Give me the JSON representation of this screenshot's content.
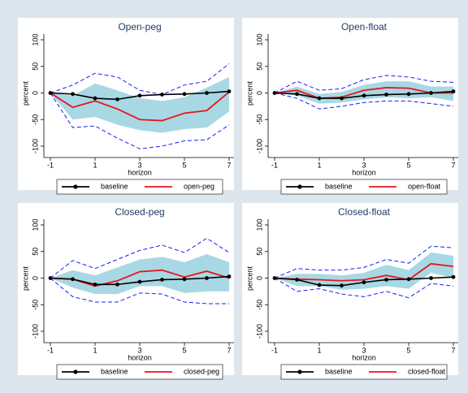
{
  "chart_data": [
    {
      "type": "line",
      "title": "Open-peg",
      "x_label": "horizon",
      "y_label": "percent",
      "x": [
        -1,
        0,
        1,
        2,
        3,
        4,
        5,
        6,
        7
      ],
      "xlim": [
        -1,
        7
      ],
      "xticks": [
        -1,
        1,
        3,
        5,
        7
      ],
      "ylim": [
        -100,
        100
      ],
      "yticks": [
        -100,
        -50,
        0,
        50,
        100
      ],
      "band": {
        "color": "#a8d8e4",
        "lower": [
          0,
          -50,
          -45,
          -60,
          -70,
          -75,
          -68,
          -65,
          -35
        ],
        "upper": [
          0,
          -5,
          18,
          5,
          -10,
          -15,
          -8,
          10,
          30
        ]
      },
      "bounds": {
        "color": "#1a1aff",
        "lower": [
          0,
          -65,
          -62,
          -85,
          -105,
          -100,
          -90,
          -88,
          -60
        ],
        "upper": [
          0,
          15,
          37,
          30,
          5,
          -3,
          15,
          22,
          55
        ]
      },
      "series": [
        {
          "name": "baseline",
          "color": "#000000",
          "marker": "circle",
          "values": [
            0,
            -2,
            -10,
            -12,
            -5,
            -3,
            -2,
            0,
            3
          ]
        },
        {
          "name": "open-peg",
          "color": "#e8141c",
          "values": [
            0,
            -27,
            -15,
            -30,
            -50,
            -52,
            -38,
            -33,
            2
          ]
        }
      ]
    },
    {
      "type": "line",
      "title": "Open-float",
      "x_label": "horizon",
      "y_label": "percent",
      "x": [
        -1,
        0,
        1,
        2,
        3,
        4,
        5,
        6,
        7
      ],
      "xlim": [
        -1,
        7
      ],
      "xticks": [
        -1,
        1,
        3,
        5,
        7
      ],
      "ylim": [
        -100,
        100
      ],
      "yticks": [
        -100,
        -50,
        0,
        50,
        100
      ],
      "band": {
        "color": "#a8d8e4",
        "lower": [
          0,
          -5,
          -20,
          -18,
          -12,
          -8,
          -10,
          -8,
          -15
        ],
        "upper": [
          0,
          12,
          -2,
          2,
          15,
          22,
          22,
          12,
          12
        ]
      },
      "bounds": {
        "color": "#1a1aff",
        "lower": [
          0,
          -10,
          -30,
          -25,
          -18,
          -15,
          -15,
          -20,
          -25
        ],
        "upper": [
          0,
          22,
          5,
          8,
          25,
          33,
          30,
          22,
          20
        ]
      },
      "series": [
        {
          "name": "baseline",
          "color": "#000000",
          "marker": "circle",
          "values": [
            0,
            -2,
            -10,
            -10,
            -5,
            -3,
            -2,
            0,
            3
          ]
        },
        {
          "name": "open-float",
          "color": "#e8141c",
          "values": [
            0,
            5,
            -10,
            -8,
            5,
            10,
            9,
            0,
            0
          ]
        }
      ]
    },
    {
      "type": "line",
      "title": "Closed-peg",
      "x_label": "horizon",
      "y_label": "percent",
      "x": [
        -1,
        0,
        1,
        2,
        3,
        4,
        5,
        6,
        7
      ],
      "xlim": [
        -1,
        7
      ],
      "xticks": [
        -1,
        1,
        3,
        5,
        7
      ],
      "ylim": [
        -100,
        100
      ],
      "yticks": [
        -100,
        -50,
        0,
        50,
        100
      ],
      "band": {
        "color": "#a8d8e4",
        "lower": [
          0,
          -18,
          -30,
          -30,
          -15,
          -15,
          -28,
          -25,
          -25
        ],
        "upper": [
          0,
          15,
          5,
          20,
          35,
          40,
          30,
          45,
          30
        ]
      },
      "bounds": {
        "color": "#1a1aff",
        "lower": [
          0,
          -35,
          -45,
          -45,
          -28,
          -30,
          -45,
          -48,
          -48
        ],
        "upper": [
          0,
          33,
          18,
          35,
          52,
          62,
          48,
          75,
          48
        ]
      },
      "series": [
        {
          "name": "baseline",
          "color": "#000000",
          "marker": "circle",
          "values": [
            0,
            -2,
            -12,
            -12,
            -7,
            -3,
            -2,
            0,
            3
          ]
        },
        {
          "name": "closed-peg",
          "color": "#e8141c",
          "values": [
            0,
            -2,
            -15,
            -5,
            12,
            15,
            2,
            13,
            0
          ]
        }
      ]
    },
    {
      "type": "line",
      "title": "Closed-float",
      "x_label": "horizon",
      "y_label": "percent",
      "x": [
        -1,
        0,
        1,
        2,
        3,
        4,
        5,
        6,
        7
      ],
      "xlim": [
        -1,
        7
      ],
      "xticks": [
        -1,
        1,
        3,
        5,
        7
      ],
      "ylim": [
        -100,
        100
      ],
      "yticks": [
        -100,
        -50,
        0,
        50,
        100
      ],
      "band": {
        "color": "#a8d8e4",
        "lower": [
          0,
          -15,
          -15,
          -22,
          -20,
          -15,
          -20,
          10,
          0
        ],
        "upper": [
          0,
          8,
          8,
          5,
          10,
          25,
          15,
          48,
          42
        ]
      },
      "bounds": {
        "color": "#1a1aff",
        "lower": [
          0,
          -25,
          -20,
          -30,
          -35,
          -25,
          -37,
          -10,
          -15
        ],
        "upper": [
          0,
          18,
          15,
          15,
          20,
          35,
          28,
          60,
          57
        ]
      },
      "series": [
        {
          "name": "baseline",
          "color": "#000000",
          "marker": "circle",
          "values": [
            0,
            -3,
            -13,
            -14,
            -8,
            -3,
            -2,
            0,
            2
          ]
        },
        {
          "name": "closed-float",
          "color": "#e8141c",
          "values": [
            0,
            -2,
            -3,
            -5,
            -3,
            5,
            -3,
            27,
            22
          ]
        }
      ]
    }
  ]
}
